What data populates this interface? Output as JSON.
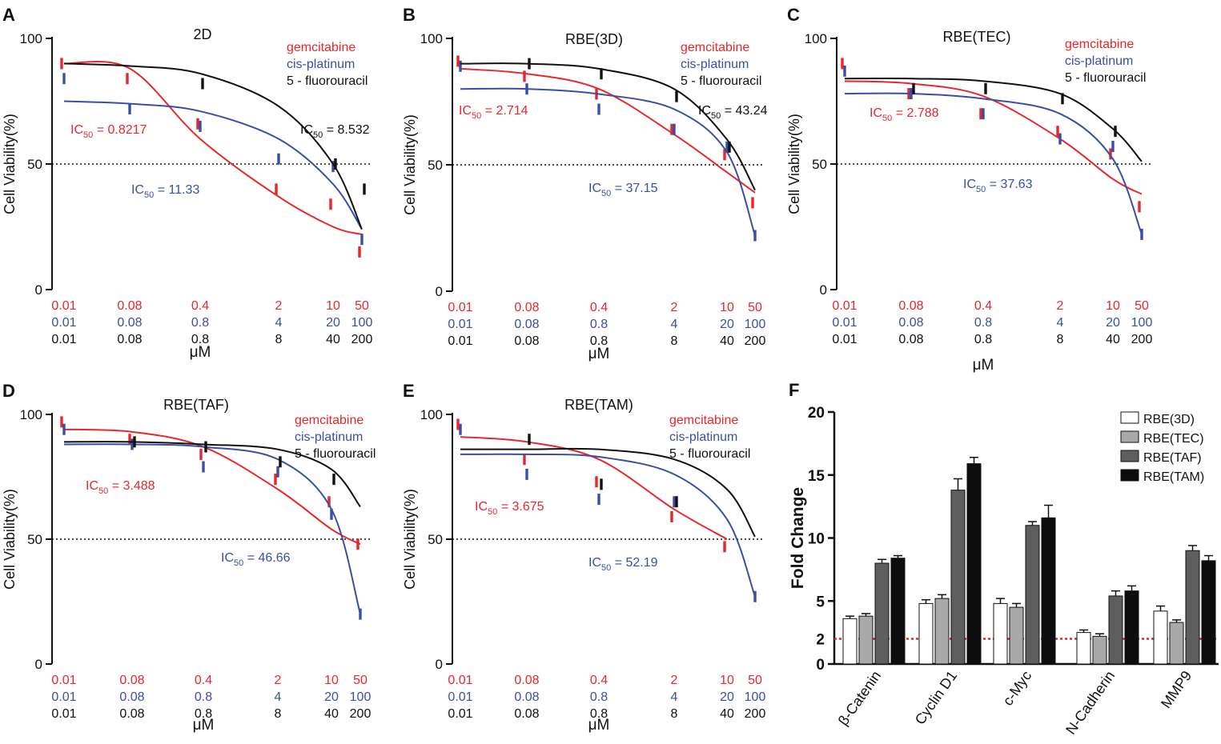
{
  "colors": {
    "red": "#e8262b",
    "blue": "#3a4fa3",
    "black": "#111111",
    "fold_red": "#e8262b"
  },
  "series_labels": [
    "gemcitabine",
    "cis-platinum",
    "5 - fluorouracil"
  ],
  "common": {
    "ylabel": "Cell Viability(%)",
    "xlabel": "μM",
    "yticks": [
      "0",
      "50",
      "100"
    ],
    "x_rows": [
      [
        "0.01",
        "0.08",
        "0.4",
        "2",
        "10",
        "50"
      ],
      [
        "0.01",
        "0.08",
        "0.8",
        "4",
        "20",
        "100"
      ],
      [
        "0.01",
        "0.08",
        "0.8",
        "8",
        "40",
        "200"
      ]
    ]
  },
  "chart_data": [
    {
      "type": "line",
      "panel": "A",
      "title": "2D",
      "ylim": [
        0,
        100
      ],
      "reference_line": 50,
      "ic50": [
        {
          "series": "gemcitabine",
          "sub": "50",
          "prefix": "IC",
          "value": "= 0.8217"
        },
        {
          "series": "cis-platinum",
          "sub": "50",
          "prefix": "IC",
          "value": "= 11.33"
        },
        {
          "series": "5 - fluorouracil",
          "sub": "50",
          "prefix": "IC",
          "value": "= 8.532"
        }
      ],
      "series": [
        {
          "name": "gemcitabine",
          "x": [
            0,
            1,
            2,
            3,
            4,
            5,
            6
          ],
          "values": [
            90,
            84,
            66,
            40,
            34,
            15,
            null
          ],
          "curve": [
            90,
            88,
            60,
            37,
            25,
            22,
            null
          ]
        },
        {
          "name": "cis-platinum",
          "x": [
            0,
            1,
            2,
            3,
            4,
            5,
            6
          ],
          "values": [
            84,
            72,
            65,
            52,
            49,
            20,
            null
          ],
          "curve": [
            75,
            74,
            71,
            60,
            42,
            24,
            null
          ]
        },
        {
          "name": "5 - fluorouracil",
          "x": [
            0,
            1,
            2,
            3,
            4,
            5,
            6
          ],
          "values": [
            null,
            null,
            82,
            null,
            50,
            40,
            null
          ],
          "curve": [
            90,
            89,
            86,
            73,
            50,
            24,
            null
          ]
        }
      ]
    },
    {
      "type": "line",
      "panel": "B",
      "title": "RBE(3D)",
      "ylim": [
        0,
        100
      ],
      "reference_line": 50,
      "ic50": [
        {
          "series": "gemcitabine",
          "sub": "50",
          "prefix": "IC",
          "value": "= 2.714"
        },
        {
          "series": "cis-platinum",
          "sub": "50",
          "prefix": "IC",
          "value": "= 37.15"
        },
        {
          "series": "5 - fluorouracil",
          "sub": "50",
          "prefix": "IC",
          "value": "= 43.24"
        }
      ],
      "series": [
        {
          "name": "gemcitabine",
          "values": [
            91,
            85,
            78,
            64,
            54,
            35
          ],
          "curve": [
            88,
            86,
            80,
            62,
            47,
            39
          ]
        },
        {
          "name": "cis-platinum",
          "values": [
            89,
            80,
            72,
            64,
            57,
            22
          ],
          "curve": [
            80,
            80,
            78,
            72,
            55,
            22
          ]
        },
        {
          "name": "5 - fluorouracil",
          "values": [
            null,
            90,
            86,
            77,
            57,
            null
          ],
          "curve": [
            90,
            90,
            88,
            80,
            60,
            40
          ]
        }
      ]
    },
    {
      "type": "line",
      "panel": "C",
      "title": "RBE(TEC)",
      "ylim": [
        0,
        100
      ],
      "reference_line": 50,
      "ic50": [
        {
          "series": "gemcitabine",
          "sub": "50",
          "prefix": "IC",
          "value": "= 2.788"
        },
        {
          "series": "cis-platinum",
          "sub": "50",
          "prefix": "IC",
          "value": "= 37.63"
        }
      ],
      "series": [
        {
          "name": "gemcitabine",
          "values": [
            90,
            78,
            70,
            63,
            54,
            33
          ],
          "curve": [
            83,
            82,
            77,
            60,
            44,
            38
          ]
        },
        {
          "name": "cis-platinum",
          "values": [
            87,
            78,
            70,
            60,
            57,
            22
          ],
          "curve": [
            78,
            78,
            76,
            70,
            52,
            22
          ]
        },
        {
          "name": "5 - fluorouracil",
          "values": [
            null,
            80,
            80,
            76,
            63,
            null
          ],
          "curve": [
            84,
            84,
            83,
            78,
            64,
            51
          ]
        }
      ]
    },
    {
      "type": "line",
      "panel": "D",
      "title": "RBE(TAF)",
      "ylim": [
        0,
        100
      ],
      "reference_line": 50,
      "ic50": [
        {
          "series": "gemcitabine",
          "sub": "50",
          "prefix": "IC",
          "value": "= 3.488"
        },
        {
          "series": "cis-platinum",
          "sub": "50",
          "prefix": "IC",
          "value": "= 46.66"
        }
      ],
      "series": [
        {
          "name": "gemcitabine",
          "values": [
            97,
            90,
            84,
            74,
            65,
            48
          ],
          "curve": [
            94,
            93,
            87,
            70,
            54,
            48
          ]
        },
        {
          "name": "cis-platinum",
          "values": [
            94,
            88,
            79,
            77,
            60,
            20
          ],
          "curve": [
            88,
            88,
            87,
            82,
            62,
            20
          ]
        },
        {
          "name": "5 - fluorouracil",
          "values": [
            null,
            89,
            87,
            81,
            74,
            null
          ],
          "curve": [
            89,
            89,
            88,
            86,
            78,
            63
          ]
        }
      ]
    },
    {
      "type": "line",
      "panel": "E",
      "title": "RBE(TAM)",
      "ylim": [
        0,
        100
      ],
      "reference_line": 50,
      "ic50": [
        {
          "series": "gemcitabine",
          "sub": "50",
          "prefix": "IC",
          "value": "= 3.675"
        },
        {
          "series": "cis-platinum",
          "sub": "50",
          "prefix": "IC",
          "value": "= 52.19"
        }
      ],
      "series": [
        {
          "name": "gemcitabine",
          "values": [
            96,
            82,
            73,
            59,
            47,
            null
          ],
          "curve": [
            91,
            89,
            82,
            62,
            50,
            null
          ]
        },
        {
          "name": "cis-platinum",
          "values": [
            94,
            76,
            66,
            65,
            null,
            27
          ],
          "curve": [
            84,
            84,
            83,
            76,
            58,
            27
          ]
        },
        {
          "name": "5 - fluorouracil",
          "values": [
            null,
            90,
            72,
            65,
            null,
            null
          ],
          "curve": [
            86,
            86,
            86,
            82,
            70,
            51
          ]
        }
      ]
    },
    {
      "type": "bar",
      "panel": "F",
      "ylabel": "Fold Change",
      "ylim": [
        0,
        20
      ],
      "yticks": [
        "0",
        "2",
        "5",
        "10",
        "15",
        "20"
      ],
      "reference_line": 2,
      "categories": [
        "β-Catenin",
        "Cyclin D1",
        "c-Myc",
        "N-Cadherin",
        "MMP9"
      ],
      "series": [
        {
          "name": "RBE(3D)",
          "color": "#ffffff",
          "values": [
            3.6,
            4.8,
            4.8,
            2.5,
            4.2
          ],
          "errors": [
            0.2,
            0.3,
            0.4,
            0.2,
            0.4
          ]
        },
        {
          "name": "RBE(TEC)",
          "color": "#a9a9a9",
          "values": [
            3.8,
            5.2,
            4.5,
            2.2,
            3.3
          ],
          "errors": [
            0.2,
            0.3,
            0.3,
            0.2,
            0.2
          ]
        },
        {
          "name": "RBE(TAF)",
          "color": "#5e5e5e",
          "values": [
            8.0,
            13.8,
            11.0,
            5.4,
            9.0
          ],
          "errors": [
            0.3,
            0.9,
            0.3,
            0.4,
            0.4
          ]
        },
        {
          "name": "RBE(TAM)",
          "color": "#0d0d0d",
          "values": [
            8.4,
            15.9,
            11.6,
            5.8,
            8.2
          ],
          "errors": [
            0.2,
            0.5,
            1.0,
            0.4,
            0.4
          ]
        }
      ]
    }
  ]
}
